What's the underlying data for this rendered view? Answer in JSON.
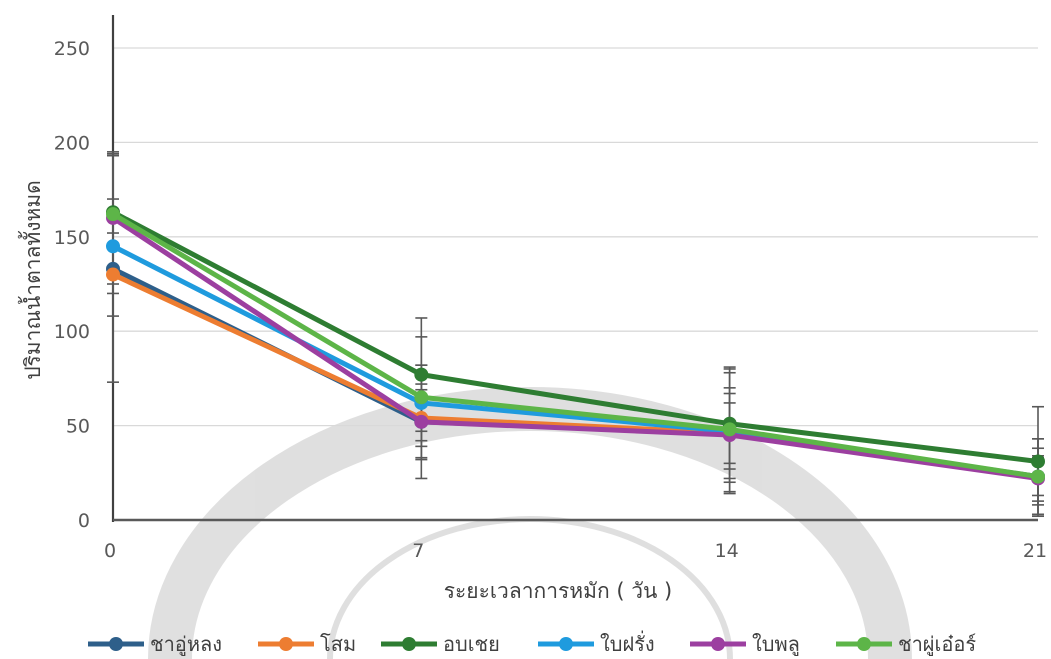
{
  "chart_data": {
    "type": "line",
    "title": "",
    "xlabel": "ระยะเวลาการหมัก ( วัน )",
    "ylabel": "ปริมาณน้ำตาลทั้งหมด",
    "x": [
      0,
      7,
      14,
      21
    ],
    "xlim": [
      0,
      21
    ],
    "ylim": [
      0,
      250
    ],
    "y_ticks": [
      0,
      50,
      100,
      150,
      200,
      250
    ],
    "grid": "horizontal",
    "legend": "bottom",
    "series": [
      {
        "name": "ชาอู่หลง",
        "color": "#2E5F8A",
        "values": [
          133,
          52,
          46,
          23
        ],
        "errors": [
          60,
          30,
          32,
          20
        ]
      },
      {
        "name": "โสม",
        "color": "#ED7D31",
        "values": [
          130,
          54,
          46,
          23
        ],
        "errors": [
          22,
          15,
          16,
          10
        ]
      },
      {
        "name": "อบเชย",
        "color": "#2E7D32",
        "values": [
          163,
          77,
          51,
          31
        ],
        "errors": [
          30,
          30,
          29,
          29
        ]
      },
      {
        "name": "ใบฝรั่ง",
        "color": "#1F9BDE",
        "values": [
          145,
          62,
          47,
          23
        ],
        "errors": [
          25,
          20,
          20,
          15
        ]
      },
      {
        "name": "ใบพลู",
        "color": "#9C3FA0",
        "values": [
          160,
          52,
          45,
          22
        ],
        "errors": [
          35,
          20,
          25,
          12
        ]
      },
      {
        "name": "ชาผู่เอ๋อร์",
        "color": "#5DB548",
        "values": [
          162,
          65,
          48,
          23
        ],
        "errors": [
          32,
          32,
          33,
          20
        ]
      }
    ]
  }
}
